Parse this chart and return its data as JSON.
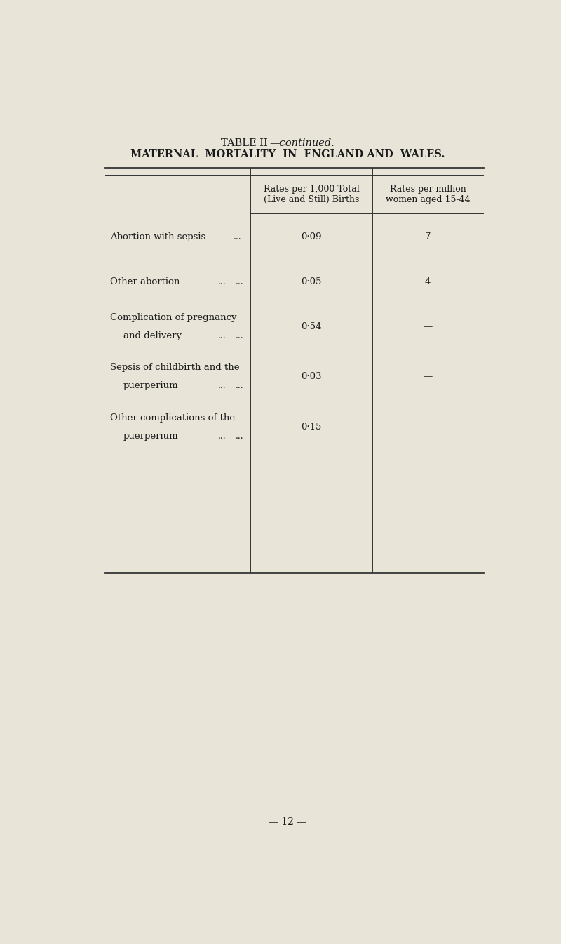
{
  "title_roman": "TABLE II",
  "title_italic": "—continued.",
  "title_line2": "MATERNAL  MORTALITY  IN  ENGLAND AND  WALES.",
  "col_headers": [
    "Rates per 1,000 Total\n(Live and Still) Births",
    "Rates per million\nwomen aged 15-44"
  ],
  "rows": [
    {
      "label_line1": "Abortion with sepsis",
      "label_line2": null,
      "dots1": "...",
      "dots2": null,
      "col1": "0·09",
      "col2": "7"
    },
    {
      "label_line1": "Other abortion",
      "label_line2": null,
      "dots1": "...",
      "dots2": "...",
      "col1": "0·05",
      "col2": "4"
    },
    {
      "label_line1": "Complication of pregnancy",
      "label_line2": "and delivery",
      "dots1": "...",
      "dots2": "...",
      "col1": "0·54",
      "col2": "—"
    },
    {
      "label_line1": "Sepsis of childbirth and the",
      "label_line2": "puerperium",
      "dots1": "...",
      "dots2": "...",
      "col1": "0·03",
      "col2": "—"
    },
    {
      "label_line1": "Other complications of the",
      "label_line2": "puerperium",
      "dots1": "...",
      "dots2": "...",
      "col1": "0·15",
      "col2": "—"
    }
  ],
  "background_color": "#e8e4d8",
  "text_color": "#1a1a1a",
  "line_color": "#333333",
  "page_number": "— 12 —",
  "fig_width": 8.0,
  "fig_height": 13.45
}
